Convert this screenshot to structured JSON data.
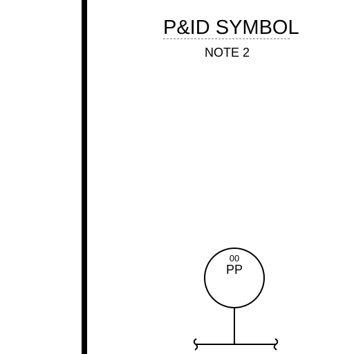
{
  "drawing": {
    "header": {
      "title": "P&ID SYMBOL",
      "note": "NOTE 2"
    },
    "instrument": {
      "tag_number": "00",
      "function_letters": "PP"
    },
    "colors": {
      "ink": "#000000",
      "paper": "#ffffff"
    }
  }
}
